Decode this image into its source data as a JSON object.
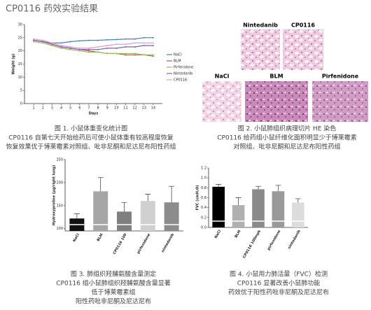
{
  "title": "CP0116 药效实验结果",
  "chart_data": [
    {
      "type": "line",
      "ylabel": "Weight (g)",
      "xlabel": "Days",
      "x": [
        1,
        2,
        3,
        4,
        5,
        6,
        7,
        8,
        9,
        10,
        11,
        12,
        13,
        14
      ],
      "xlim": [
        0,
        15
      ],
      "xticks": [
        1,
        2,
        3,
        4,
        5,
        6,
        7,
        8,
        9,
        10,
        11,
        12,
        13,
        14
      ],
      "ylim": [
        0,
        30
      ],
      "yticks": [
        0,
        5,
        10,
        15,
        20,
        25,
        30
      ],
      "legend": "right",
      "series": [
        {
          "name": "NaCl",
          "color": "#4a7fc1",
          "values": [
            24,
            23.5,
            23,
            23,
            23.5,
            23.8,
            24,
            24,
            24.2,
            24.3,
            24.5,
            24.5,
            25,
            25
          ]
        },
        {
          "name": "BLM",
          "color": "#c0504d",
          "values": [
            24,
            23.5,
            22.5,
            21.5,
            21,
            20.5,
            20,
            19.5,
            19,
            19,
            18.5,
            18.5,
            18.5,
            18
          ]
        },
        {
          "name": "Pirfenidone",
          "color": "#9bbb59",
          "values": [
            23.5,
            23,
            22,
            21,
            20.5,
            20,
            19.5,
            19.5,
            19,
            19,
            19,
            19,
            18.5,
            18.5
          ]
        },
        {
          "name": "Nintedanib",
          "color": "#8064a2",
          "values": [
            24,
            23.5,
            22.5,
            21.5,
            21,
            20.5,
            20.5,
            20.5,
            21,
            21,
            21.5,
            21.5,
            22,
            22
          ]
        },
        {
          "name": "CP0116",
          "color": "#e39ad6",
          "values": [
            24.5,
            24,
            23,
            22,
            21.5,
            21,
            21,
            21.5,
            22,
            22.5,
            22.5,
            23,
            23,
            23
          ]
        }
      ]
    },
    {
      "type": "bar",
      "ylabel": "Hydroxyproline (µg/right lung)",
      "categories": [
        "NaCl",
        "BLM",
        "CP0116 100",
        "pirfenidone",
        "nintedanib"
      ],
      "values": [
        122,
        181,
        137,
        160,
        157
      ],
      "errors": [
        10,
        30,
        20,
        15,
        35
      ],
      "colors": [
        "#111111",
        "#a6a6a6",
        "#7f7f7f",
        "#d0d0d0",
        "#8c8c8c"
      ],
      "ylim": [
        95,
        250
      ],
      "yticks": [
        100,
        150,
        200,
        250
      ]
    },
    {
      "type": "bar",
      "ylabel": "FVC (cmH₂O)",
      "categories": [
        "NaCl",
        "BLM",
        "CP0116 100mpk",
        "pirfenidone",
        "nintedanib"
      ],
      "values": [
        0.82,
        0.45,
        0.77,
        0.73,
        0.5
      ],
      "errors": [
        0.05,
        0.15,
        0.06,
        0.12,
        0.08
      ],
      "colors": [
        "#000000",
        "#b0b0b0",
        "#8a8a8a",
        "#9a9a9a",
        "#dcdcdc"
      ],
      "ylim": [
        0,
        1.2
      ],
      "yticks": [
        {
          "value": 0,
          "label": "0.0"
        },
        0.2,
        0.4,
        0.6,
        0.8,
        {
          "value": 1,
          "label": "1.0"
        },
        {
          "value": 1.2,
          "label": "1.2"
        }
      ]
    }
  ],
  "panels": [
    "Nintedanib",
    "CP0116",
    "NaCl",
    "BLM",
    "Pirfenidone"
  ],
  "captions": [
    {
      "lines": [
        "图 1. 小鼠体重变化统计图",
        "CP0116 自第七天开始给药后可使小鼠体重有较高程度恢复",
        "恢复效果优于博莱霉素对照组、吡非尼酮和尼达尼布阳性药组"
      ]
    },
    {
      "lines": [
        "图 2. 小鼠肺组织病理切片 HE 染色",
        "CP0116 给药组小鼠纤维化面积明显少于博莱霉素",
        "对照组、吡非尼酮和尼达尼布阳性药组"
      ]
    },
    {
      "lines": [
        "图 3. 肺组织羟脯氨酸含量测定",
        "CP0116 组小鼠肺组织羟脯氨酸含量显著",
        "低于博莱霉素组",
        "阳性药吡非尼酮及尼达尼布"
      ]
    },
    {
      "lines": [
        "图 4. 小鼠用力肺活量（FVC）检测",
        "CP0116 显著改善小鼠肺功能",
        "药效优于阳性药吡非尼酮及尼达尼布"
      ]
    }
  ]
}
